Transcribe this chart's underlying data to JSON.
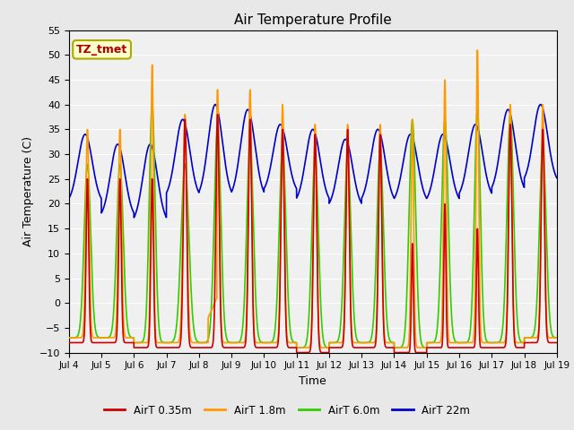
{
  "title": "Air Temperature Profile",
  "xlabel": "Time",
  "ylabel": "Air Temperature (C)",
  "ylim": [
    -10,
    55
  ],
  "yticks": [
    -10,
    -5,
    0,
    5,
    10,
    15,
    20,
    25,
    30,
    35,
    40,
    45,
    50,
    55
  ],
  "colors": {
    "AirT_035m": "#cc0000",
    "AirT_18m": "#ff9900",
    "AirT_60m": "#33cc00",
    "AirT_22m": "#0000cc"
  },
  "legend_labels": [
    "AirT 0.35m",
    "AirT 1.8m",
    "AirT 6.0m",
    "AirT 22m"
  ],
  "annotation_text": "TZ_tmet",
  "annotation_color": "#aa0000",
  "annotation_bg": "#ffffcc",
  "annotation_edge": "#aaaa00",
  "fig_bg": "#e8e8e8",
  "plot_bg": "#f0f0f0",
  "grid_color": "#ffffff",
  "x_start": 4,
  "x_end": 19,
  "x_ticks": [
    4,
    5,
    6,
    7,
    8,
    9,
    10,
    11,
    12,
    13,
    14,
    15,
    16,
    17,
    18,
    19
  ],
  "x_tick_labels": [
    "Jul 4",
    "Jul 5",
    "Jul 6",
    "Jul 7",
    "Jul 8",
    "Jul 9",
    "Jul 10",
    "Jul 11",
    "Jul 12",
    "Jul 13",
    "Jul 14",
    "Jul 15",
    "Jul 16",
    "Jul 17",
    "Jul 18",
    "Jul 19"
  ]
}
